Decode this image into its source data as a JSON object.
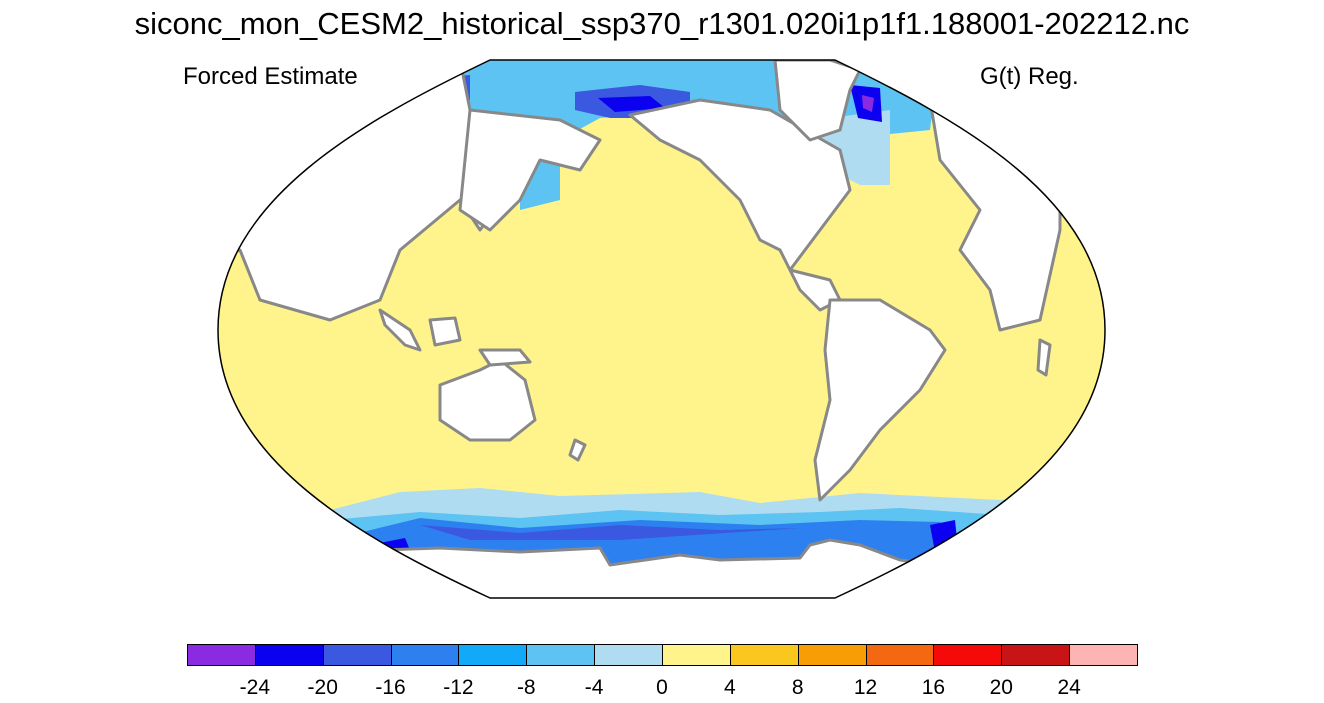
{
  "title": "siconc_mon_CESM2_historical_ssp370_r1301.020i1p1f1.188001-202212.nc",
  "left_subtitle": "Forced Estimate",
  "right_subtitle": "G(t) Reg.",
  "colorbar": {
    "colors": [
      "#8a2be2",
      "#0b00f0",
      "#3a58e0",
      "#2d80f0",
      "#12aaf8",
      "#5cc3f2",
      "#b0dcf1",
      "#fff48c",
      "#fac71e",
      "#f99d07",
      "#f56812",
      "#f50a0a",
      "#c81414",
      "#ffb4b4"
    ],
    "labels": [
      "-24",
      "-20",
      "-16",
      "-12",
      "-8",
      "-4",
      "0",
      "4",
      "8",
      "12",
      "16",
      "20",
      "24"
    ]
  },
  "map_colors": {
    "land": "#ffffff",
    "coast": "#888888",
    "ocean_positive_small": "#fff48c",
    "ice_m4": "#b0dcf1",
    "ice_m8": "#5cc3f2",
    "ice_m12": "#2d80f0",
    "ice_m16": "#3a58e0",
    "ice_m20": "#0b00f0",
    "ice_m24": "#8a2be2"
  }
}
